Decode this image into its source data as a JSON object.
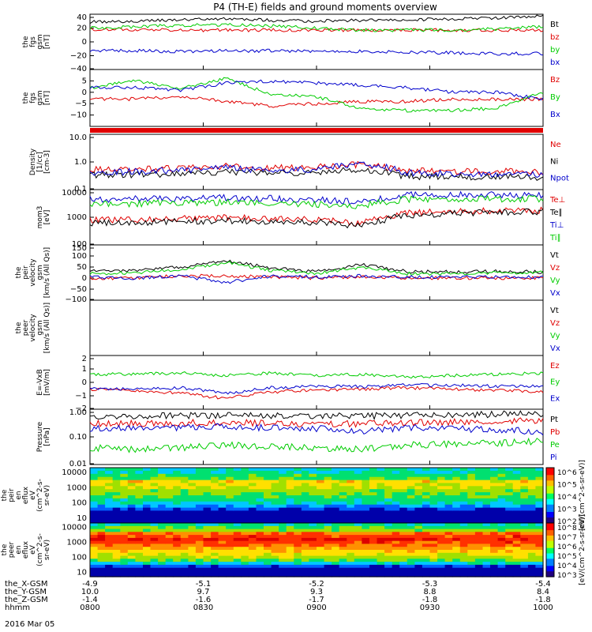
{
  "title": "P4 (TH-E) fields and ground moments overview",
  "date": "2016 Mar 05",
  "colors": {
    "black": "#000000",
    "red": "#e00000",
    "green": "#00cc00",
    "blue": "#0000cc"
  },
  "time_ticks": [
    "0800",
    "0830",
    "0900",
    "0930",
    "1000"
  ],
  "ephemeris": {
    "rows": [
      {
        "label": "the_X-GSM",
        "values": [
          "-4.9",
          "-5.1",
          "-5.2",
          "-5.3",
          "-5.4"
        ]
      },
      {
        "label": "the_Y-GSM",
        "values": [
          "10.0",
          "9.7",
          "9.3",
          "8.8",
          "8.4"
        ]
      },
      {
        "label": "the_Z-GSM",
        "values": [
          "-1.4",
          "-1.6",
          "-1.7",
          "-1.8",
          "-1.8"
        ]
      },
      {
        "label": "hhmm",
        "values": [
          "0800",
          "0830",
          "0900",
          "0930",
          "1000"
        ]
      }
    ]
  },
  "chart_data": [
    {
      "type": "line",
      "ylabel": [
        "the",
        "fgs",
        "gsm",
        "[nT]"
      ],
      "ylim": [
        -40,
        40
      ],
      "yticks": [
        "40",
        "20",
        "0",
        "−20",
        "−40"
      ],
      "series": [
        {
          "name": "Bt",
          "color": "#000000",
          "values": [
            29,
            30,
            32,
            34,
            31,
            30,
            31,
            32,
            33,
            35,
            38
          ]
        },
        {
          "name": "bz",
          "color": "#e00000",
          "values": [
            18,
            18,
            17,
            17,
            17,
            17,
            17,
            17,
            17,
            17,
            17
          ]
        },
        {
          "name": "by",
          "color": "#00cc00",
          "values": [
            20,
            22,
            24,
            25,
            23,
            20,
            17,
            17,
            17,
            19,
            22
          ]
        },
        {
          "name": "bx",
          "color": "#0000cc",
          "values": [
            -12,
            -13,
            -14,
            -13,
            -13,
            -13,
            -14,
            -15,
            -16,
            -17,
            -17
          ]
        }
      ]
    },
    {
      "type": "line",
      "ylabel": [
        "the",
        "fgs",
        "gsm",
        "[nT]"
      ],
      "ylim": [
        -15,
        10
      ],
      "yticks": [
        "5",
        "0",
        "−5",
        "−10"
      ],
      "series": [
        {
          "name": "Bz",
          "color": "#e00000",
          "values": [
            -3,
            -3,
            -2,
            -4,
            -6,
            -5,
            -4,
            -4,
            -3,
            -3,
            -3
          ]
        },
        {
          "name": "By",
          "color": "#00cc00",
          "values": [
            2,
            5,
            2,
            6,
            -1,
            -2,
            -7,
            -8,
            -8,
            -7,
            0
          ]
        },
        {
          "name": "Bx",
          "color": "#0000cc",
          "values": [
            2,
            2,
            1,
            4,
            5,
            4,
            3,
            2,
            0,
            0,
            -3
          ]
        }
      ]
    },
    {
      "type": "line",
      "scale": "log",
      "ylabel": [
        "Density",
        "[1/cc]",
        "[cm-3]"
      ],
      "ylim": [
        0.1,
        10
      ],
      "yticks": [
        "10.0",
        "1.0",
        "0.1"
      ],
      "series": [
        {
          "name": "Ne",
          "color": "#e00000",
          "values": [
            0.55,
            0.55,
            0.6,
            0.7,
            0.6,
            0.65,
            0.8,
            0.5,
            0.45,
            0.45,
            0.45
          ]
        },
        {
          "name": "Ni",
          "color": "#000000",
          "values": [
            0.33,
            0.35,
            0.38,
            0.45,
            0.4,
            0.42,
            0.55,
            0.3,
            0.28,
            0.28,
            0.28
          ]
        },
        {
          "name": "Npot",
          "color": "#0000cc",
          "values": [
            0.42,
            0.45,
            0.5,
            0.6,
            0.5,
            0.55,
            0.9,
            0.4,
            0.38,
            0.35,
            0.35
          ]
        }
      ]
    },
    {
      "type": "line",
      "scale": "log",
      "ylabel": [
        "mom3",
        "[eV]"
      ],
      "ylim": [
        100,
        10000
      ],
      "yticks": [
        "10000",
        "1000",
        "100"
      ],
      "series": [
        {
          "name": "Te⊥",
          "color": "#e00000",
          "values": [
            800,
            800,
            900,
            950,
            900,
            800,
            600,
            1400,
            1600,
            1700,
            1800
          ]
        },
        {
          "name": "Te∥",
          "color": "#000000",
          "values": [
            600,
            650,
            700,
            750,
            700,
            650,
            450,
            1200,
            1400,
            1500,
            1600
          ]
        },
        {
          "name": "Ti⊥",
          "color": "#0000cc",
          "values": [
            4500,
            4600,
            4800,
            5000,
            4700,
            4300,
            3500,
            6500,
            6500,
            6500,
            6500
          ]
        },
        {
          "name": "Ti∥",
          "color": "#00cc00",
          "values": [
            3000,
            3100,
            3300,
            3500,
            3200,
            3000,
            2600,
            4500,
            4500,
            4500,
            4600
          ]
        }
      ]
    },
    {
      "type": "line",
      "ylabel": [
        "the",
        "peir",
        "velocity",
        "gsm",
        "[km/s (All Qs)]"
      ],
      "ylim": [
        -100,
        150
      ],
      "yticks": [
        "150",
        "100",
        "50",
        "0",
        "−50",
        "−100"
      ],
      "series": [
        {
          "name": "Vt",
          "color": "#000000",
          "values": [
            30,
            35,
            50,
            80,
            45,
            30,
            60,
            30,
            28,
            30,
            28
          ]
        },
        {
          "name": "Vz",
          "color": "#e00000",
          "values": [
            0,
            0,
            10,
            10,
            5,
            0,
            5,
            0,
            0,
            0,
            0
          ]
        },
        {
          "name": "Vy",
          "color": "#00cc00",
          "values": [
            20,
            25,
            40,
            70,
            35,
            20,
            50,
            20,
            20,
            25,
            25
          ]
        },
        {
          "name": "Vx",
          "color": "#0000cc",
          "values": [
            5,
            0,
            10,
            -20,
            10,
            5,
            10,
            5,
            5,
            5,
            5
          ]
        }
      ]
    },
    {
      "type": "line",
      "ylabel": [
        "the",
        "peer",
        "velocity",
        "gsm",
        "[km/s (All Qs)]"
      ],
      "yticks": [],
      "series": [
        {
          "name": "Vt",
          "color": "#000000",
          "values": []
        },
        {
          "name": "Vz",
          "color": "#e00000",
          "values": []
        },
        {
          "name": "Vy",
          "color": "#00cc00",
          "values": []
        },
        {
          "name": "Vx",
          "color": "#0000cc",
          "values": []
        }
      ]
    },
    {
      "type": "line",
      "ylabel": [
        "E=-VxB",
        "[mV/m]"
      ],
      "ylim": [
        -2,
        2
      ],
      "yticks": [
        "2",
        "1",
        "0",
        "−1",
        "−2"
      ],
      "series": [
        {
          "name": "Ez",
          "color": "#e00000",
          "values": [
            -0.5,
            -0.6,
            -0.8,
            -1.2,
            -0.7,
            -0.6,
            -0.5,
            -0.4,
            -0.5,
            -0.6,
            -0.7
          ]
        },
        {
          "name": "Ey",
          "color": "#00cc00",
          "values": [
            0.6,
            0.6,
            0.7,
            0.5,
            0.7,
            0.5,
            0.6,
            0.4,
            0.5,
            0.6,
            0.7
          ]
        },
        {
          "name": "Ex",
          "color": "#0000cc",
          "values": [
            -0.5,
            -0.5,
            -0.4,
            -0.8,
            -0.4,
            -0.3,
            -0.3,
            -0.2,
            -0.2,
            -0.3,
            -0.3
          ]
        }
      ]
    },
    {
      "type": "line",
      "scale": "log",
      "ylabel": [
        "Pressure",
        "[nPa]"
      ],
      "ylim": [
        0.01,
        1
      ],
      "yticks": [
        "1.00",
        "0.10",
        "0.01"
      ],
      "series": [
        {
          "name": "Pt",
          "color": "#000000",
          "values": [
            0.55,
            0.56,
            0.58,
            0.6,
            0.58,
            0.56,
            0.57,
            0.6,
            0.62,
            0.65,
            0.7
          ]
        },
        {
          "name": "Pb",
          "color": "#e00000",
          "values": [
            0.3,
            0.3,
            0.32,
            0.35,
            0.3,
            0.29,
            0.3,
            0.33,
            0.35,
            0.36,
            0.4
          ]
        },
        {
          "name": "Pe",
          "color": "#00cc00",
          "values": [
            0.04,
            0.035,
            0.04,
            0.05,
            0.045,
            0.04,
            0.035,
            0.05,
            0.055,
            0.06,
            0.07
          ]
        },
        {
          "name": "Pi",
          "color": "#0000cc",
          "values": [
            0.2,
            0.21,
            0.22,
            0.24,
            0.21,
            0.2,
            0.15,
            0.22,
            0.2,
            0.18,
            0.15
          ]
        }
      ]
    },
    {
      "type": "heatmap",
      "scale": "log",
      "ylabel": [
        "the",
        "peir",
        "en",
        "eflux",
        "eV",
        "(cm^2-s-",
        "sr-eV)"
      ],
      "ylim": [
        5,
        20000
      ],
      "yticks": [
        "10000",
        "1000",
        "100",
        "10"
      ],
      "colorbar": {
        "label": "[eV/(cm^2-s-sr-eV)]",
        "ticks": [
          "10^6",
          "10^5",
          "10^4",
          "10^3",
          "10^2"
        ]
      }
    },
    {
      "type": "heatmap",
      "scale": "log",
      "ylabel": [
        "the",
        "peer",
        "en",
        "eflux",
        "eV",
        "(cm^2-s-",
        "sr-eV)"
      ],
      "ylim": [
        5,
        20000
      ],
      "yticks": [
        "10000",
        "1000",
        "100",
        "10"
      ],
      "colorbar": {
        "label": "[eV/(cm^2-s-sr-eV)]",
        "ticks": [
          "10^8",
          "10^7",
          "10^6",
          "10^5",
          "10^4",
          "10^3"
        ]
      }
    }
  ]
}
